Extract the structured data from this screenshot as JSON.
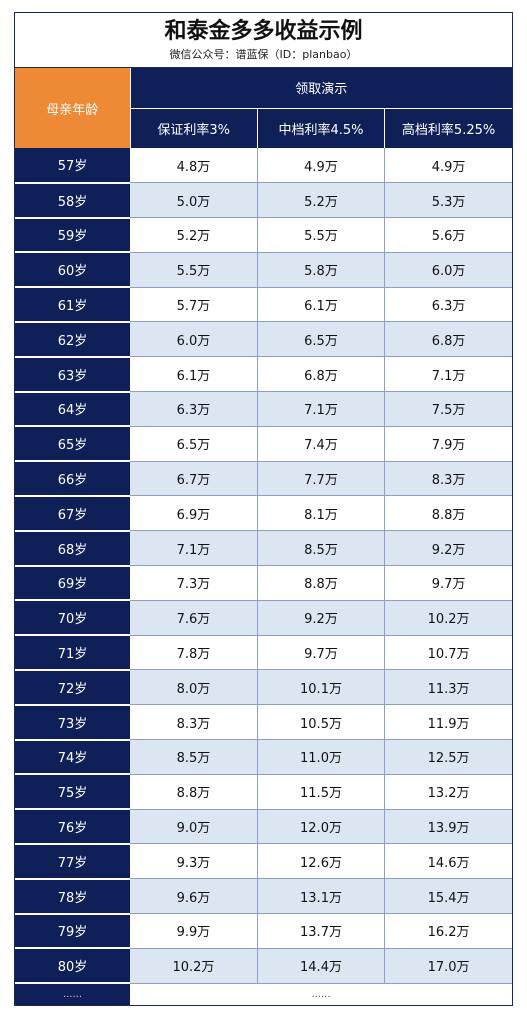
{
  "title": "和泰金多多收益示例",
  "subtitle": "微信公众号：谱蓝保（ID：planbao）",
  "header": {
    "age_label": "母亲年龄",
    "group_label": "领取演示",
    "columns": [
      "保证利率3%",
      "中档利率4.5%",
      "高档利率5.25%"
    ]
  },
  "rows": [
    {
      "age": "57岁",
      "values": [
        "4.8万",
        "4.9万",
        "4.9万"
      ]
    },
    {
      "age": "58岁",
      "values": [
        "5.0万",
        "5.2万",
        "5.3万"
      ]
    },
    {
      "age": "59岁",
      "values": [
        "5.2万",
        "5.5万",
        "5.6万"
      ]
    },
    {
      "age": "60岁",
      "values": [
        "5.5万",
        "5.8万",
        "6.0万"
      ]
    },
    {
      "age": "61岁",
      "values": [
        "5.7万",
        "6.1万",
        "6.3万"
      ]
    },
    {
      "age": "62岁",
      "values": [
        "6.0万",
        "6.5万",
        "6.8万"
      ]
    },
    {
      "age": "63岁",
      "values": [
        "6.1万",
        "6.8万",
        "7.1万"
      ]
    },
    {
      "age": "64岁",
      "values": [
        "6.3万",
        "7.1万",
        "7.5万"
      ]
    },
    {
      "age": "65岁",
      "values": [
        "6.5万",
        "7.4万",
        "7.9万"
      ]
    },
    {
      "age": "66岁",
      "values": [
        "6.7万",
        "7.7万",
        "8.3万"
      ]
    },
    {
      "age": "67岁",
      "values": [
        "6.9万",
        "8.1万",
        "8.8万"
      ]
    },
    {
      "age": "68岁",
      "values": [
        "7.1万",
        "8.5万",
        "9.2万"
      ]
    },
    {
      "age": "69岁",
      "values": [
        "7.3万",
        "8.8万",
        "9.7万"
      ]
    },
    {
      "age": "70岁",
      "values": [
        "7.6万",
        "9.2万",
        "10.2万"
      ]
    },
    {
      "age": "71岁",
      "values": [
        "7.8万",
        "9.7万",
        "10.7万"
      ]
    },
    {
      "age": "72岁",
      "values": [
        "8.0万",
        "10.1万",
        "11.3万"
      ]
    },
    {
      "age": "73岁",
      "values": [
        "8.3万",
        "10.5万",
        "11.9万"
      ]
    },
    {
      "age": "74岁",
      "values": [
        "8.5万",
        "11.0万",
        "12.5万"
      ]
    },
    {
      "age": "75岁",
      "values": [
        "8.8万",
        "11.5万",
        "13.2万"
      ]
    },
    {
      "age": "76岁",
      "values": [
        "9.0万",
        "12.0万",
        "13.9万"
      ]
    },
    {
      "age": "77岁",
      "values": [
        "9.3万",
        "12.6万",
        "14.6万"
      ]
    },
    {
      "age": "78岁",
      "values": [
        "9.6万",
        "13.1万",
        "15.4万"
      ]
    },
    {
      "age": "79岁",
      "values": [
        "9.9万",
        "13.7万",
        "16.2万"
      ]
    },
    {
      "age": "80岁",
      "values": [
        "10.2万",
        "14.4万",
        "17.0万"
      ]
    }
  ],
  "tail": {
    "age": "......",
    "values": "......"
  }
}
